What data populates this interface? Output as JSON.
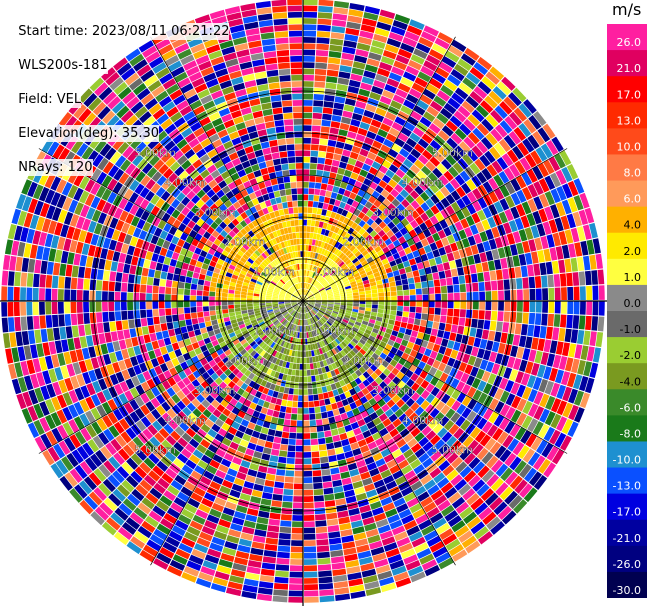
{
  "info": {
    "start_time": "Start time: 2023/08/11 06:21:22",
    "instrument": "WLS200s-181",
    "field": "Field: VEL",
    "elevation": "Elevation(deg): 35.30",
    "nrays": "NRays: 120"
  },
  "colorbar": {
    "unit": "m/s",
    "ticks": [
      "26.0",
      "21.0",
      "17.0",
      "13.0",
      "10.0",
      "8.0",
      "6.0",
      "4.0",
      "2.0",
      "1.0",
      "0.0",
      "-1.0",
      "-2.0",
      "-4.0",
      "-6.0",
      "-8.0",
      "-10.0",
      "-13.0",
      "-17.0",
      "-21.0",
      "-26.0",
      "-30.0"
    ],
    "colors": [
      "#ff1fa0",
      "#e00060",
      "#ff0000",
      "#ff2a00",
      "#ff4a1a",
      "#ff7a45",
      "#ff9a5a",
      "#ffb000",
      "#ffea00",
      "#ffff40",
      "#8a8a8a",
      "#6a6a6a",
      "#9acd32",
      "#7a9a20",
      "#3a8a2a",
      "#1a7a1a",
      "#1e90d0",
      "#0a50ff",
      "#0000e0",
      "#0000a0",
      "#000080",
      "#000050"
    ]
  },
  "chart_data": {
    "type": "heatmap",
    "projection": "PPI",
    "field": "VEL",
    "units": "m/s",
    "nrays": 120,
    "elevation_deg": 35.3,
    "range_rings_km": [
      1.0,
      2.0,
      3.0,
      4.0,
      5.0
    ],
    "ring_labels": [
      "1.00km",
      "2.00km",
      "3.00km",
      "4.00km",
      "5.00km"
    ],
    "max_range_km": 6.0,
    "near_field_pattern": {
      "north_half_velocity_ms": [
        1.0,
        4.0
      ],
      "south_half_velocity_ms": [
        -6.0,
        -1.0
      ],
      "coherent_range_km": [
        0,
        2.2
      ]
    }
  }
}
